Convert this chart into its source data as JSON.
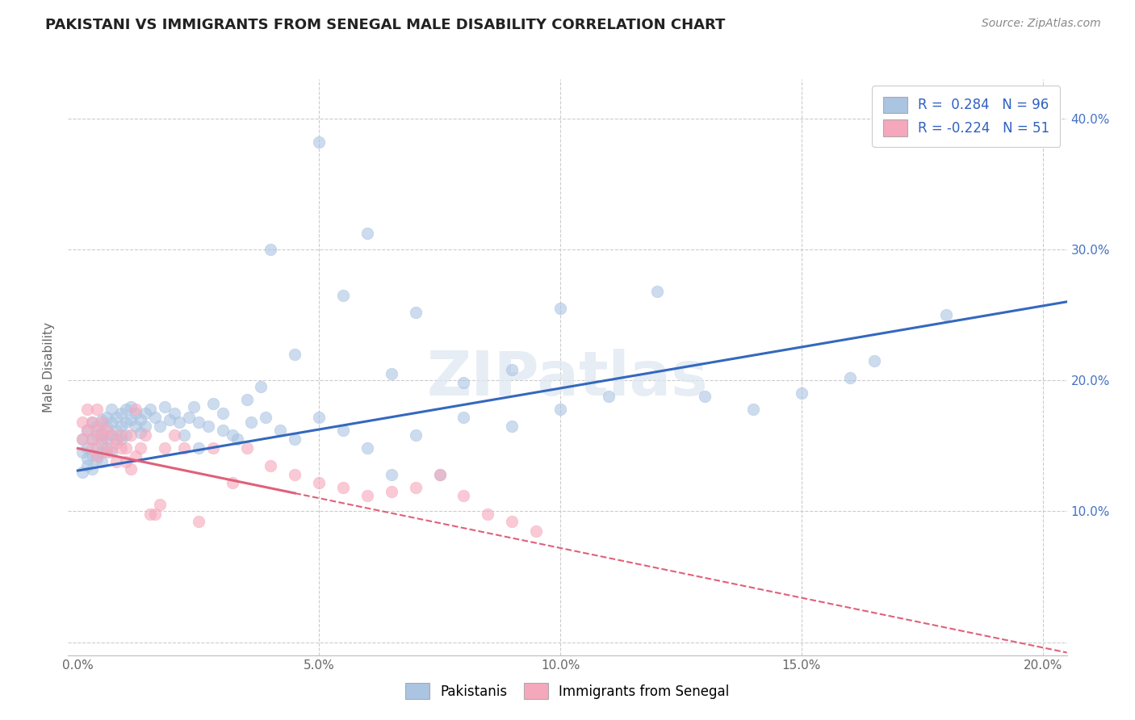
{
  "title": "PAKISTANI VS IMMIGRANTS FROM SENEGAL MALE DISABILITY CORRELATION CHART",
  "source": "Source: ZipAtlas.com",
  "ylabel": "Male Disability",
  "xlim": [
    -0.002,
    0.205
  ],
  "ylim": [
    -0.01,
    0.43
  ],
  "xticks": [
    0.0,
    0.05,
    0.1,
    0.15,
    0.2
  ],
  "xtick_labels": [
    "0.0%",
    "5.0%",
    "10.0%",
    "15.0%",
    "20.0%"
  ],
  "yticks": [
    0.0,
    0.1,
    0.2,
    0.3,
    0.4
  ],
  "ytick_labels": [
    "",
    "10.0%",
    "20.0%",
    "30.0%",
    "40.0%"
  ],
  "blue_color": "#aac4e2",
  "pink_color": "#f5a8bc",
  "blue_line_color": "#3468be",
  "pink_line_color": "#e0607a",
  "legend_blue_label": "Pakistanis",
  "legend_pink_label": "Immigrants from Senegal",
  "r_blue": "0.284",
  "n_blue": "96",
  "r_pink": "-0.224",
  "n_pink": "51",
  "watermark": "ZIPatlas",
  "background_color": "#ffffff",
  "grid_color": "#cccccc",
  "blue_line_x0": 0.0,
  "blue_line_y0": 0.131,
  "blue_line_x1": 0.205,
  "blue_line_y1": 0.26,
  "pink_line_x0": 0.0,
  "pink_line_y0": 0.148,
  "pink_line_x1": 0.205,
  "pink_line_y1": -0.008,
  "pakistani_x": [
    0.001,
    0.001,
    0.001,
    0.002,
    0.002,
    0.002,
    0.002,
    0.003,
    0.003,
    0.003,
    0.003,
    0.004,
    0.004,
    0.004,
    0.004,
    0.005,
    0.005,
    0.005,
    0.005,
    0.005,
    0.006,
    0.006,
    0.006,
    0.006,
    0.007,
    0.007,
    0.007,
    0.007,
    0.008,
    0.008,
    0.008,
    0.009,
    0.009,
    0.009,
    0.01,
    0.01,
    0.01,
    0.011,
    0.011,
    0.012,
    0.012,
    0.013,
    0.013,
    0.014,
    0.014,
    0.015,
    0.016,
    0.017,
    0.018,
    0.019,
    0.02,
    0.021,
    0.022,
    0.023,
    0.024,
    0.025,
    0.027,
    0.03,
    0.033,
    0.036,
    0.039,
    0.042,
    0.045,
    0.05,
    0.055,
    0.06,
    0.065,
    0.07,
    0.075,
    0.08,
    0.09,
    0.1,
    0.11,
    0.12,
    0.13,
    0.14,
    0.15,
    0.16,
    0.165,
    0.18,
    0.05,
    0.06,
    0.07,
    0.08,
    0.09,
    0.1,
    0.04,
    0.045,
    0.055,
    0.065,
    0.03,
    0.035,
    0.025,
    0.028,
    0.032,
    0.038
  ],
  "pakistani_y": [
    0.145,
    0.13,
    0.155,
    0.135,
    0.148,
    0.162,
    0.14,
    0.132,
    0.155,
    0.143,
    0.168,
    0.148,
    0.158,
    0.14,
    0.165,
    0.155,
    0.145,
    0.16,
    0.138,
    0.17,
    0.155,
    0.165,
    0.148,
    0.172,
    0.158,
    0.168,
    0.145,
    0.178,
    0.162,
    0.155,
    0.172,
    0.165,
    0.155,
    0.175,
    0.168,
    0.158,
    0.178,
    0.17,
    0.18,
    0.165,
    0.175,
    0.17,
    0.16,
    0.175,
    0.165,
    0.178,
    0.172,
    0.165,
    0.18,
    0.17,
    0.175,
    0.168,
    0.158,
    0.172,
    0.18,
    0.168,
    0.165,
    0.162,
    0.155,
    0.168,
    0.172,
    0.162,
    0.155,
    0.172,
    0.162,
    0.148,
    0.128,
    0.158,
    0.128,
    0.172,
    0.165,
    0.178,
    0.188,
    0.268,
    0.188,
    0.178,
    0.19,
    0.202,
    0.215,
    0.25,
    0.382,
    0.312,
    0.252,
    0.198,
    0.208,
    0.255,
    0.3,
    0.22,
    0.265,
    0.205,
    0.175,
    0.185,
    0.148,
    0.182,
    0.158,
    0.195
  ],
  "senegal_x": [
    0.001,
    0.001,
    0.002,
    0.002,
    0.003,
    0.003,
    0.003,
    0.004,
    0.004,
    0.004,
    0.005,
    0.005,
    0.005,
    0.006,
    0.006,
    0.007,
    0.007,
    0.008,
    0.008,
    0.009,
    0.009,
    0.01,
    0.01,
    0.011,
    0.011,
    0.012,
    0.012,
    0.013,
    0.014,
    0.015,
    0.016,
    0.017,
    0.018,
    0.02,
    0.022,
    0.025,
    0.028,
    0.032,
    0.035,
    0.04,
    0.045,
    0.05,
    0.055,
    0.06,
    0.065,
    0.07,
    0.075,
    0.08,
    0.085,
    0.09,
    0.095
  ],
  "senegal_y": [
    0.155,
    0.168,
    0.162,
    0.178,
    0.155,
    0.168,
    0.148,
    0.162,
    0.178,
    0.142,
    0.152,
    0.168,
    0.158,
    0.145,
    0.162,
    0.148,
    0.158,
    0.152,
    0.138,
    0.148,
    0.158,
    0.148,
    0.138,
    0.158,
    0.132,
    0.142,
    0.178,
    0.148,
    0.158,
    0.098,
    0.098,
    0.105,
    0.148,
    0.158,
    0.148,
    0.092,
    0.148,
    0.122,
    0.148,
    0.135,
    0.128,
    0.122,
    0.118,
    0.112,
    0.115,
    0.118,
    0.128,
    0.112,
    0.098,
    0.092,
    0.085
  ]
}
